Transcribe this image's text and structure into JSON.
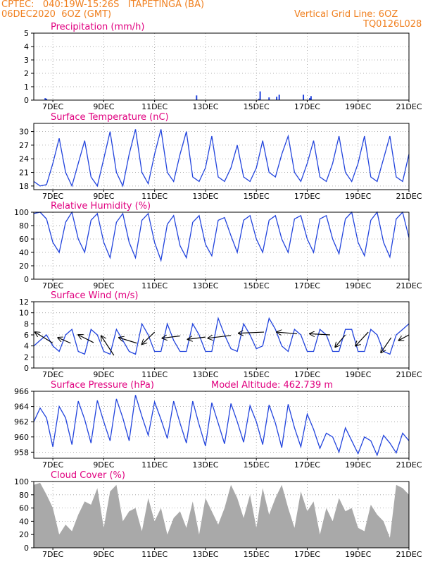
{
  "header": {
    "line1_left": "CPTEC:   040:19W-15:26S   ITAPETINGA (BA)",
    "line2_left": "06DEC2020  6OZ (GMT)",
    "line1_right": "Vertical Grid Line: 6OZ",
    "line2_right": "TQ0126L028"
  },
  "colors": {
    "header": "#f08020",
    "panel_title": "#e0007f",
    "series": "#2244dd",
    "cloud_fill": "#a9a9a9",
    "wind_vector": "#000000"
  },
  "x_axis": {
    "ticks": [
      "7DEC",
      "9DEC",
      "11DEC",
      "13DEC",
      "15DEC",
      "17DEC",
      "19DEC",
      "21DEC"
    ],
    "tick_positions_day": [
      7,
      9,
      11,
      13,
      15,
      17,
      19,
      21
    ],
    "range_day": [
      6.25,
      21.0
    ]
  },
  "chart_data": [
    {
      "type": "bar",
      "title": "Precipitation (mm/h)",
      "ylim": [
        0,
        5
      ],
      "yticks": [
        "0",
        "1",
        "2",
        "3",
        "4",
        "5"
      ],
      "grid": true,
      "x_day": [
        6.7,
        6.75,
        12.65,
        15.1,
        15.15,
        15.5,
        15.8,
        15.9,
        16.85,
        17.1,
        17.15
      ],
      "values": [
        0.15,
        0.1,
        0.35,
        0.1,
        0.65,
        0.2,
        0.25,
        0.4,
        0.4,
        0.15,
        0.3
      ]
    },
    {
      "type": "line",
      "title": "Surface Temperature (nC)",
      "ylim": [
        17.2,
        31.8
      ],
      "yticks": [
        "18",
        "21",
        "24",
        "27",
        "30"
      ],
      "ytick_values": [
        18,
        21,
        24,
        27,
        30
      ],
      "grid": true,
      "x_day": [
        6.25,
        6.5,
        6.75,
        7.0,
        7.25,
        7.5,
        7.75,
        8.0,
        8.25,
        8.5,
        8.75,
        9.0,
        9.25,
        9.5,
        9.75,
        10.0,
        10.25,
        10.5,
        10.75,
        11.0,
        11.25,
        11.5,
        11.75,
        12.0,
        12.25,
        12.5,
        12.75,
        13.0,
        13.25,
        13.5,
        13.75,
        14.0,
        14.25,
        14.5,
        14.75,
        15.0,
        15.25,
        15.5,
        15.75,
        16.0,
        16.25,
        16.5,
        16.75,
        17.0,
        17.25,
        17.5,
        17.75,
        18.0,
        18.25,
        18.5,
        18.75,
        19.0,
        19.25,
        19.5,
        19.75,
        20.0,
        20.25,
        20.5,
        20.75,
        21.0
      ],
      "values": [
        19,
        18,
        18.3,
        23,
        28.5,
        21,
        18,
        23,
        28,
        20,
        18,
        24,
        30,
        21,
        18,
        25,
        30.5,
        21,
        18.5,
        25,
        30.5,
        21,
        19,
        25,
        30,
        20,
        19,
        22,
        29,
        20,
        19,
        22,
        27,
        20,
        19,
        22,
        28,
        21,
        20,
        25,
        29,
        21,
        19,
        23,
        28,
        20,
        19,
        23,
        29,
        21,
        19,
        23,
        29,
        20,
        19,
        24,
        29,
        20,
        19,
        25
      ]
    },
    {
      "type": "line",
      "title": "Relative Humidity (%)",
      "ylim": [
        0,
        100
      ],
      "yticks": [
        "0",
        "20",
        "40",
        "60",
        "80",
        "100"
      ],
      "ytick_values": [
        0,
        20,
        40,
        60,
        80,
        100
      ],
      "grid": true,
      "x_day": [
        6.25,
        6.5,
        6.75,
        7.0,
        7.25,
        7.5,
        7.75,
        8.0,
        8.25,
        8.5,
        8.75,
        9.0,
        9.25,
        9.5,
        9.75,
        10.0,
        10.25,
        10.5,
        10.75,
        11.0,
        11.25,
        11.5,
        11.75,
        12.0,
        12.25,
        12.5,
        12.75,
        13.0,
        13.25,
        13.5,
        13.75,
        14.0,
        14.25,
        14.5,
        14.75,
        15.0,
        15.25,
        15.5,
        15.75,
        16.0,
        16.25,
        16.5,
        16.75,
        17.0,
        17.25,
        17.5,
        17.75,
        18.0,
        18.25,
        18.5,
        18.75,
        19.0,
        19.25,
        19.5,
        19.75,
        20.0,
        20.25,
        20.5,
        20.75,
        21.0
      ],
      "values": [
        98,
        100,
        90,
        55,
        40,
        85,
        100,
        60,
        40,
        88,
        98,
        55,
        32,
        85,
        98,
        55,
        32,
        88,
        98,
        55,
        28,
        82,
        95,
        50,
        32,
        85,
        95,
        52,
        35,
        88,
        92,
        65,
        40,
        88,
        95,
        60,
        40,
        88,
        95,
        60,
        40,
        90,
        95,
        60,
        40,
        90,
        95,
        60,
        38,
        90,
        100,
        55,
        35,
        88,
        100,
        55,
        33,
        90,
        100,
        62
      ]
    },
    {
      "type": "line",
      "title": "Surface Wind (m/s)",
      "ylim": [
        0,
        12
      ],
      "yticks": [
        "0",
        "2",
        "4",
        "6",
        "8",
        "10",
        "12"
      ],
      "ytick_values": [
        0,
        2,
        4,
        6,
        8,
        10,
        12
      ],
      "grid": true,
      "x_day": [
        6.25,
        6.5,
        6.75,
        7.0,
        7.25,
        7.5,
        7.75,
        8.0,
        8.25,
        8.5,
        8.75,
        9.0,
        9.25,
        9.5,
        9.75,
        10.0,
        10.25,
        10.5,
        10.75,
        11.0,
        11.25,
        11.5,
        11.75,
        12.0,
        12.25,
        12.5,
        12.75,
        13.0,
        13.25,
        13.5,
        13.75,
        14.0,
        14.25,
        14.5,
        14.75,
        15.0,
        15.25,
        15.5,
        15.75,
        16.0,
        16.25,
        16.5,
        16.75,
        17.0,
        17.25,
        17.5,
        17.75,
        18.0,
        18.25,
        18.5,
        18.75,
        19.0,
        19.25,
        19.5,
        19.75,
        20.0,
        20.25,
        20.5,
        20.75,
        21.0
      ],
      "values": [
        4,
        5,
        6,
        4,
        3,
        6,
        7,
        3,
        2.5,
        7,
        6,
        3,
        2.5,
        7,
        5,
        3,
        2.5,
        8,
        6,
        3,
        3,
        8,
        5,
        3,
        3,
        8,
        6,
        3,
        3,
        9,
        6,
        3.5,
        3,
        8,
        6,
        3.5,
        4,
        9,
        7,
        4,
        3,
        7,
        6,
        3,
        3,
        7,
        6,
        3,
        3,
        7,
        7,
        3,
        3,
        7,
        6,
        3,
        2.5,
        6,
        7,
        8
      ],
      "wind_vectors": [
        {
          "x_day": 6.3,
          "x2_day": 7.0,
          "y1": 6.5,
          "y2": 4.5
        },
        {
          "x_day": 7.2,
          "x2_day": 7.7,
          "y1": 5.5,
          "y2": 4.5
        },
        {
          "x_day": 8.0,
          "x2_day": 8.6,
          "y1": 6.0,
          "y2": 4.6
        },
        {
          "x_day": 8.9,
          "x2_day": 9.4,
          "y1": 5.8,
          "y2": 2.3
        },
        {
          "x_day": 9.6,
          "x2_day": 10.3,
          "y1": 5.5,
          "y2": 4.5
        },
        {
          "x_day": 10.5,
          "x2_day": 11.0,
          "y1": 4.3,
          "y2": 6.5
        },
        {
          "x_day": 11.3,
          "x2_day": 12.0,
          "y1": 5.4,
          "y2": 5.8
        },
        {
          "x_day": 12.3,
          "x2_day": 13.0,
          "y1": 5.2,
          "y2": 5.6
        },
        {
          "x_day": 13.1,
          "x2_day": 14.0,
          "y1": 5.4,
          "y2": 5.9
        },
        {
          "x_day": 14.3,
          "x2_day": 15.3,
          "y1": 6.3,
          "y2": 6.5
        },
        {
          "x_day": 15.8,
          "x2_day": 16.6,
          "y1": 6.5,
          "y2": 6.2
        },
        {
          "x_day": 17.1,
          "x2_day": 17.9,
          "y1": 6.2,
          "y2": 6.0
        },
        {
          "x_day": 18.1,
          "x2_day": 18.5,
          "y1": 3.8,
          "y2": 6.0
        },
        {
          "x_day": 18.9,
          "x2_day": 19.4,
          "y1": 4.0,
          "y2": 6.5
        },
        {
          "x_day": 19.9,
          "x2_day": 20.3,
          "y1": 2.8,
          "y2": 5.5
        },
        {
          "x_day": 20.6,
          "x2_day": 21.0,
          "y1": 5.0,
          "y2": 6.0
        }
      ]
    },
    {
      "type": "line",
      "title": "Surface Pressure (hPa)",
      "subtitle": "Model Altitude: 462.739  m",
      "ylim": [
        957.2,
        966
      ],
      "yticks": [
        "958",
        "960",
        "962",
        "964",
        "966"
      ],
      "ytick_values": [
        958,
        960,
        962,
        964,
        966
      ],
      "grid": true,
      "x_day": [
        6.25,
        6.5,
        6.75,
        7.0,
        7.25,
        7.5,
        7.75,
        8.0,
        8.25,
        8.5,
        8.75,
        9.0,
        9.25,
        9.5,
        9.75,
        10.0,
        10.25,
        10.5,
        10.75,
        11.0,
        11.25,
        11.5,
        11.75,
        12.0,
        12.25,
        12.5,
        12.75,
        13.0,
        13.25,
        13.5,
        13.75,
        14.0,
        14.25,
        14.5,
        14.75,
        15.0,
        15.25,
        15.5,
        15.75,
        16.0,
        16.25,
        16.5,
        16.75,
        17.0,
        17.25,
        17.5,
        17.75,
        18.0,
        18.25,
        18.5,
        18.75,
        19.0,
        19.25,
        19.5,
        19.75,
        20.0,
        20.25,
        20.5,
        20.75,
        21.0
      ],
      "values": [
        962,
        963.8,
        962.5,
        958.7,
        964,
        962.5,
        959,
        964.7,
        962.3,
        959.2,
        964.8,
        962,
        959.5,
        965,
        962.5,
        959.5,
        965.5,
        962.7,
        960.2,
        964.6,
        962.3,
        959.8,
        964.7,
        961.8,
        959.2,
        964.7,
        961.6,
        958.8,
        964.5,
        961.8,
        959.1,
        964.4,
        962,
        959.3,
        964.1,
        962,
        959,
        964.2,
        961.8,
        958.6,
        964.3,
        961.2,
        958.7,
        963,
        961,
        958.5,
        960.5,
        960,
        958,
        961.2,
        959.5,
        957.8,
        960,
        959.5,
        957.6,
        960.2,
        959.2,
        957.9,
        960.5,
        959.5
      ]
    },
    {
      "type": "area",
      "title": "Cloud Cover (%)",
      "ylim": [
        0,
        100
      ],
      "yticks": [
        "0",
        "20",
        "40",
        "60",
        "80",
        "100"
      ],
      "ytick_values": [
        0,
        20,
        40,
        60,
        80,
        100
      ],
      "grid": true,
      "x_day": [
        6.25,
        6.5,
        6.75,
        7.0,
        7.25,
        7.5,
        7.75,
        8.0,
        8.25,
        8.5,
        8.75,
        9.0,
        9.25,
        9.5,
        9.75,
        10.0,
        10.25,
        10.5,
        10.75,
        11.0,
        11.25,
        11.5,
        11.75,
        12.0,
        12.25,
        12.5,
        12.75,
        13.0,
        13.25,
        13.5,
        13.75,
        14.0,
        14.25,
        14.5,
        14.75,
        15.0,
        15.25,
        15.5,
        15.75,
        16.0,
        16.25,
        16.5,
        16.75,
        17.0,
        17.25,
        17.5,
        17.75,
        18.0,
        18.25,
        18.5,
        18.75,
        19.0,
        19.25,
        19.5,
        19.75,
        20.0,
        20.25,
        20.5,
        20.75,
        21.0
      ],
      "values": [
        95,
        98,
        80,
        60,
        20,
        35,
        25,
        50,
        70,
        65,
        90,
        30,
        85,
        95,
        40,
        55,
        60,
        25,
        75,
        40,
        60,
        20,
        45,
        55,
        30,
        70,
        20,
        75,
        55,
        35,
        60,
        95,
        75,
        45,
        80,
        30,
        90,
        50,
        75,
        95,
        60,
        30,
        85,
        55,
        70,
        20,
        60,
        40,
        75,
        55,
        60,
        30,
        25,
        65,
        50,
        40,
        15,
        95,
        90,
        80
      ]
    }
  ]
}
